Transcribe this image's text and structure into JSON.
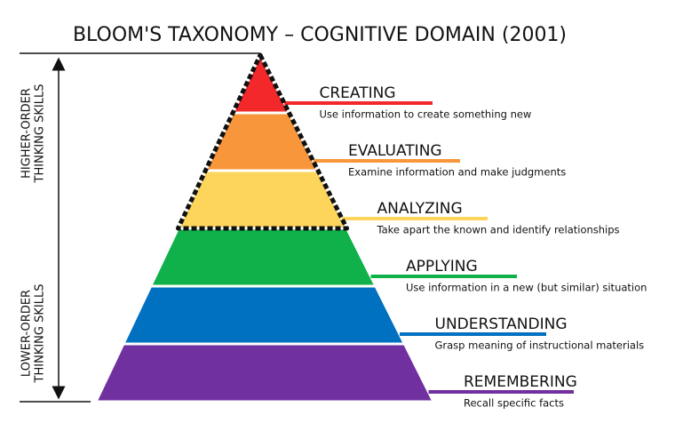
{
  "title": "BLOOM'S TAXONOMY – COGNITIVE DOMAIN (2001)",
  "side_labels": [
    {
      "lines": [
        "HIGHER-ORDER",
        "THINKING SKILLS"
      ]
    },
    {
      "lines": [
        "LOWER-ORDER",
        "THINKING SKILLS"
      ]
    }
  ],
  "levels": [
    {
      "name": "CREATING",
      "description": "Use information to create something new",
      "color": "#f2282b"
    },
    {
      "name": "EVALUATING",
      "description": "Examine information and make judgments",
      "color": "#f7963a"
    },
    {
      "name": "ANALYZING",
      "description": "Take apart the known and identify relationships",
      "color": "#fdd55a"
    },
    {
      "name": "APPLYING",
      "description": "Use information in a new (but similar) situation",
      "color": "#10b04a"
    },
    {
      "name": "UNDERSTANDING",
      "description": "Grasp meaning of instructional materials",
      "color": "#0070c0"
    },
    {
      "name": "REMEMBERING",
      "description": "Recall specific facts",
      "color": "#7030a0"
    }
  ]
}
